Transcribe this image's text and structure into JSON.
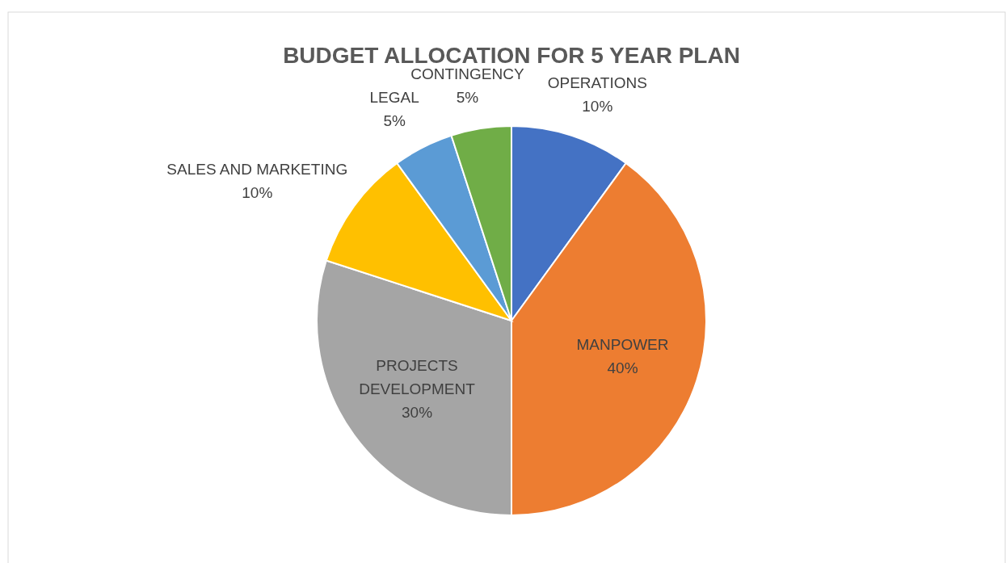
{
  "chart_data": {
    "type": "pie",
    "title": "BUDGET ALLOCATION FOR 5 YEAR PLAN",
    "categories": [
      "OPERATIONS",
      "MANPOWER",
      "PROJECTS DEVELOPMENT",
      "SALES AND MARKETING",
      "LEGAL",
      "CONTINGENCY"
    ],
    "values": [
      10,
      40,
      30,
      10,
      5,
      5
    ],
    "colors": [
      "#4472c4",
      "#ed7d31",
      "#a5a5a5",
      "#ffc000",
      "#5b9bd5",
      "#70ad47"
    ],
    "value_labels": [
      "10%",
      "40%",
      "30%",
      "10%",
      "5%",
      "5%"
    ]
  }
}
